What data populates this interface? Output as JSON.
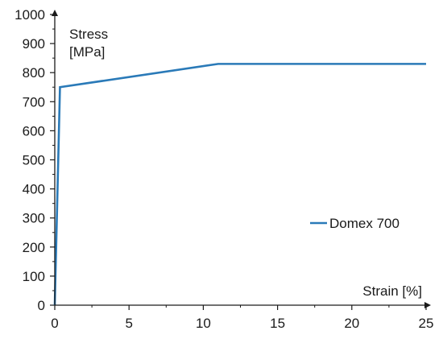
{
  "chart_data": {
    "type": "line",
    "title": "",
    "xlabel": "Strain [%]",
    "ylabel_line1": "Stress",
    "ylabel_line2": "[MPa]",
    "xlim": [
      0,
      25
    ],
    "ylim": [
      0,
      1000
    ],
    "xticks": [
      0,
      5,
      10,
      15,
      20,
      25
    ],
    "yticks": [
      0,
      100,
      200,
      300,
      400,
      500,
      600,
      700,
      800,
      900,
      1000
    ],
    "grid": false,
    "legend_position": "right",
    "series": [
      {
        "name": "Domex 700",
        "color": "#2a7ab8",
        "x": [
          0,
          0.35,
          11,
          25
        ],
        "y": [
          0,
          750,
          830,
          830
        ]
      }
    ]
  }
}
